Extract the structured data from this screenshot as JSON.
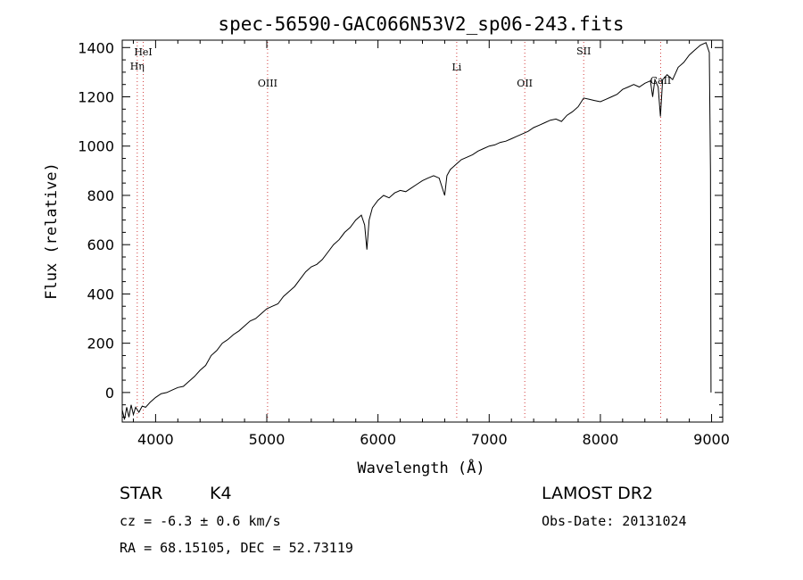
{
  "chart_data": {
    "type": "line",
    "title": "spec-56590-GAC066N53V2_sp06-243.fits",
    "xlabel": "Wavelength (Å)",
    "ylabel": "Flux (relative)",
    "xlim": [
      3700,
      9100
    ],
    "ylim": [
      -120,
      1430
    ],
    "x_ticks": [
      4000,
      5000,
      6000,
      7000,
      8000,
      9000
    ],
    "y_ticks": [
      0,
      200,
      400,
      600,
      800,
      1000,
      1200,
      1400
    ],
    "series": [
      {
        "name": "spectrum",
        "points": [
          [
            3700,
            -70
          ],
          [
            3720,
            -110
          ],
          [
            3740,
            -60
          ],
          [
            3760,
            -100
          ],
          [
            3780,
            -50
          ],
          [
            3800,
            -90
          ],
          [
            3820,
            -60
          ],
          [
            3850,
            -80
          ],
          [
            3880,
            -55
          ],
          [
            3910,
            -60
          ],
          [
            3950,
            -40
          ],
          [
            4000,
            -20
          ],
          [
            4050,
            -5
          ],
          [
            4100,
            0
          ],
          [
            4150,
            10
          ],
          [
            4200,
            20
          ],
          [
            4250,
            25
          ],
          [
            4300,
            45
          ],
          [
            4350,
            65
          ],
          [
            4400,
            90
          ],
          [
            4450,
            110
          ],
          [
            4500,
            150
          ],
          [
            4550,
            170
          ],
          [
            4600,
            200
          ],
          [
            4650,
            215
          ],
          [
            4700,
            235
          ],
          [
            4750,
            250
          ],
          [
            4800,
            270
          ],
          [
            4850,
            290
          ],
          [
            4900,
            300
          ],
          [
            4950,
            320
          ],
          [
            5000,
            340
          ],
          [
            5050,
            350
          ],
          [
            5100,
            360
          ],
          [
            5150,
            390
          ],
          [
            5200,
            410
          ],
          [
            5250,
            430
          ],
          [
            5300,
            460
          ],
          [
            5350,
            490
          ],
          [
            5400,
            510
          ],
          [
            5450,
            520
          ],
          [
            5500,
            540
          ],
          [
            5550,
            570
          ],
          [
            5600,
            600
          ],
          [
            5650,
            620
          ],
          [
            5700,
            650
          ],
          [
            5750,
            670
          ],
          [
            5800,
            700
          ],
          [
            5850,
            720
          ],
          [
            5880,
            680
          ],
          [
            5900,
            580
          ],
          [
            5920,
            700
          ],
          [
            5950,
            750
          ],
          [
            6000,
            780
          ],
          [
            6050,
            800
          ],
          [
            6100,
            790
          ],
          [
            6150,
            810
          ],
          [
            6200,
            820
          ],
          [
            6250,
            815
          ],
          [
            6300,
            830
          ],
          [
            6350,
            845
          ],
          [
            6400,
            860
          ],
          [
            6450,
            870
          ],
          [
            6500,
            880
          ],
          [
            6550,
            870
          ],
          [
            6600,
            800
          ],
          [
            6620,
            880
          ],
          [
            6650,
            905
          ],
          [
            6700,
            925
          ],
          [
            6750,
            945
          ],
          [
            6800,
            955
          ],
          [
            6850,
            965
          ],
          [
            6900,
            980
          ],
          [
            6950,
            990
          ],
          [
            7000,
            1000
          ],
          [
            7050,
            1005
          ],
          [
            7100,
            1015
          ],
          [
            7150,
            1020
          ],
          [
            7200,
            1030
          ],
          [
            7250,
            1040
          ],
          [
            7300,
            1050
          ],
          [
            7350,
            1060
          ],
          [
            7400,
            1075
          ],
          [
            7450,
            1085
          ],
          [
            7500,
            1095
          ],
          [
            7550,
            1105
          ],
          [
            7600,
            1110
          ],
          [
            7650,
            1100
          ],
          [
            7700,
            1125
          ],
          [
            7750,
            1140
          ],
          [
            7800,
            1160
          ],
          [
            7850,
            1195
          ],
          [
            7900,
            1190
          ],
          [
            7950,
            1185
          ],
          [
            8000,
            1180
          ],
          [
            8050,
            1190
          ],
          [
            8100,
            1200
          ],
          [
            8150,
            1210
          ],
          [
            8200,
            1230
          ],
          [
            8250,
            1240
          ],
          [
            8300,
            1250
          ],
          [
            8350,
            1240
          ],
          [
            8400,
            1255
          ],
          [
            8450,
            1265
          ],
          [
            8470,
            1200
          ],
          [
            8490,
            1270
          ],
          [
            8520,
            1240
          ],
          [
            8540,
            1120
          ],
          [
            8560,
            1270
          ],
          [
            8600,
            1290
          ],
          [
            8650,
            1270
          ],
          [
            8700,
            1320
          ],
          [
            8750,
            1340
          ],
          [
            8800,
            1370
          ],
          [
            8850,
            1390
          ],
          [
            8900,
            1410
          ],
          [
            8950,
            1420
          ],
          [
            8980,
            1380
          ],
          [
            8990,
            900
          ],
          [
            8995,
            0
          ]
        ]
      }
    ],
    "line_markers": [
      {
        "label": "HeI",
        "x": 3889
      },
      {
        "label": "Hη",
        "x": 3835
      },
      {
        "label": "OIII",
        "x": 5007
      },
      {
        "label": "Li",
        "x": 6708
      },
      {
        "label": "OII",
        "x": 7320
      },
      {
        "label": "SII",
        "x": 7850
      },
      {
        "label": "CaII",
        "x": 8542
      }
    ]
  },
  "info": {
    "class_label": "STAR",
    "subclass": "K4",
    "survey": "LAMOST DR2",
    "redshift": "cz = -6.3 ± 0.6 km/s",
    "obs_date": "Obs-Date: 20131024",
    "coords": "RA =  68.15105, DEC =  52.73119"
  },
  "colors": {
    "spectrum": "#000000",
    "marker": "#d23c3c",
    "axis": "#000000"
  }
}
